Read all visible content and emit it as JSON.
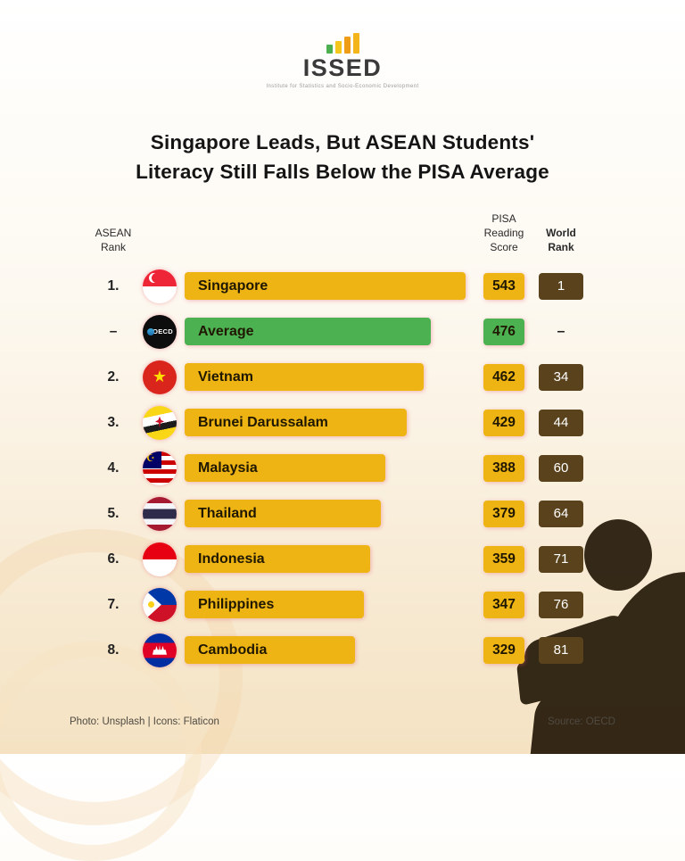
{
  "logo": {
    "name": "ISSED",
    "tagline": "Institute for Statistics and Socio-Economic Development"
  },
  "title": {
    "line1": "Singapore Leads, But ASEAN Students'",
    "line2": "Literacy Still Falls Below the PISA Average"
  },
  "headers": {
    "asean_rank": "ASEAN\nRank",
    "pisa_score": "PISA\nReading Score",
    "world_rank": "World\nRank"
  },
  "rows": [
    {
      "rank": "1.",
      "country": "Singapore",
      "score": 543,
      "world": "1",
      "flag": "sg",
      "color": "yellow"
    },
    {
      "rank": "–",
      "country": "Average",
      "score": 476,
      "world": "–",
      "flag": "oecd",
      "color": "green"
    },
    {
      "rank": "2.",
      "country": "Vietnam",
      "score": 462,
      "world": "34",
      "flag": "vn",
      "color": "yellow"
    },
    {
      "rank": "3.",
      "country": "Brunei Darussalam",
      "score": 429,
      "world": "44",
      "flag": "bn",
      "color": "yellow"
    },
    {
      "rank": "4.",
      "country": "Malaysia",
      "score": 388,
      "world": "60",
      "flag": "my",
      "color": "yellow"
    },
    {
      "rank": "5.",
      "country": "Thailand",
      "score": 379,
      "world": "64",
      "flag": "th",
      "color": "yellow"
    },
    {
      "rank": "6.",
      "country": "Indonesia",
      "score": 359,
      "world": "71",
      "flag": "id",
      "color": "yellow"
    },
    {
      "rank": "7.",
      "country": "Philippines",
      "score": 347,
      "world": "76",
      "flag": "ph",
      "color": "yellow"
    },
    {
      "rank": "8.",
      "country": "Cambodia",
      "score": 329,
      "world": "81",
      "flag": "kh",
      "color": "yellow"
    }
  ],
  "footer": {
    "left": "Photo: Unsplash  |  Icons: Flaticon",
    "right": "Source: OECD"
  },
  "colors": {
    "bar_yellow": "#EDB414",
    "bar_green": "#4CB251",
    "badge_brown": "#5A431C"
  },
  "chart_data": {
    "type": "bar",
    "orientation": "horizontal",
    "title": "Singapore Leads, But ASEAN Students' Literacy Still Falls Below the PISA Average",
    "categories": [
      "Singapore",
      "Average (OECD)",
      "Vietnam",
      "Brunei Darussalam",
      "Malaysia",
      "Thailand",
      "Indonesia",
      "Philippines",
      "Cambodia"
    ],
    "values": [
      543,
      476,
      462,
      429,
      388,
      379,
      359,
      347,
      329
    ],
    "value_label": "PISA Reading Score",
    "asean_rank": [
      "1",
      "–",
      "2",
      "3",
      "4",
      "5",
      "6",
      "7",
      "8"
    ],
    "world_rank": [
      "1",
      "–",
      "34",
      "44",
      "60",
      "64",
      "71",
      "76",
      "81"
    ],
    "xlim": [
      0,
      560
    ],
    "legend_position": "none",
    "grid": false,
    "source": "OECD"
  }
}
